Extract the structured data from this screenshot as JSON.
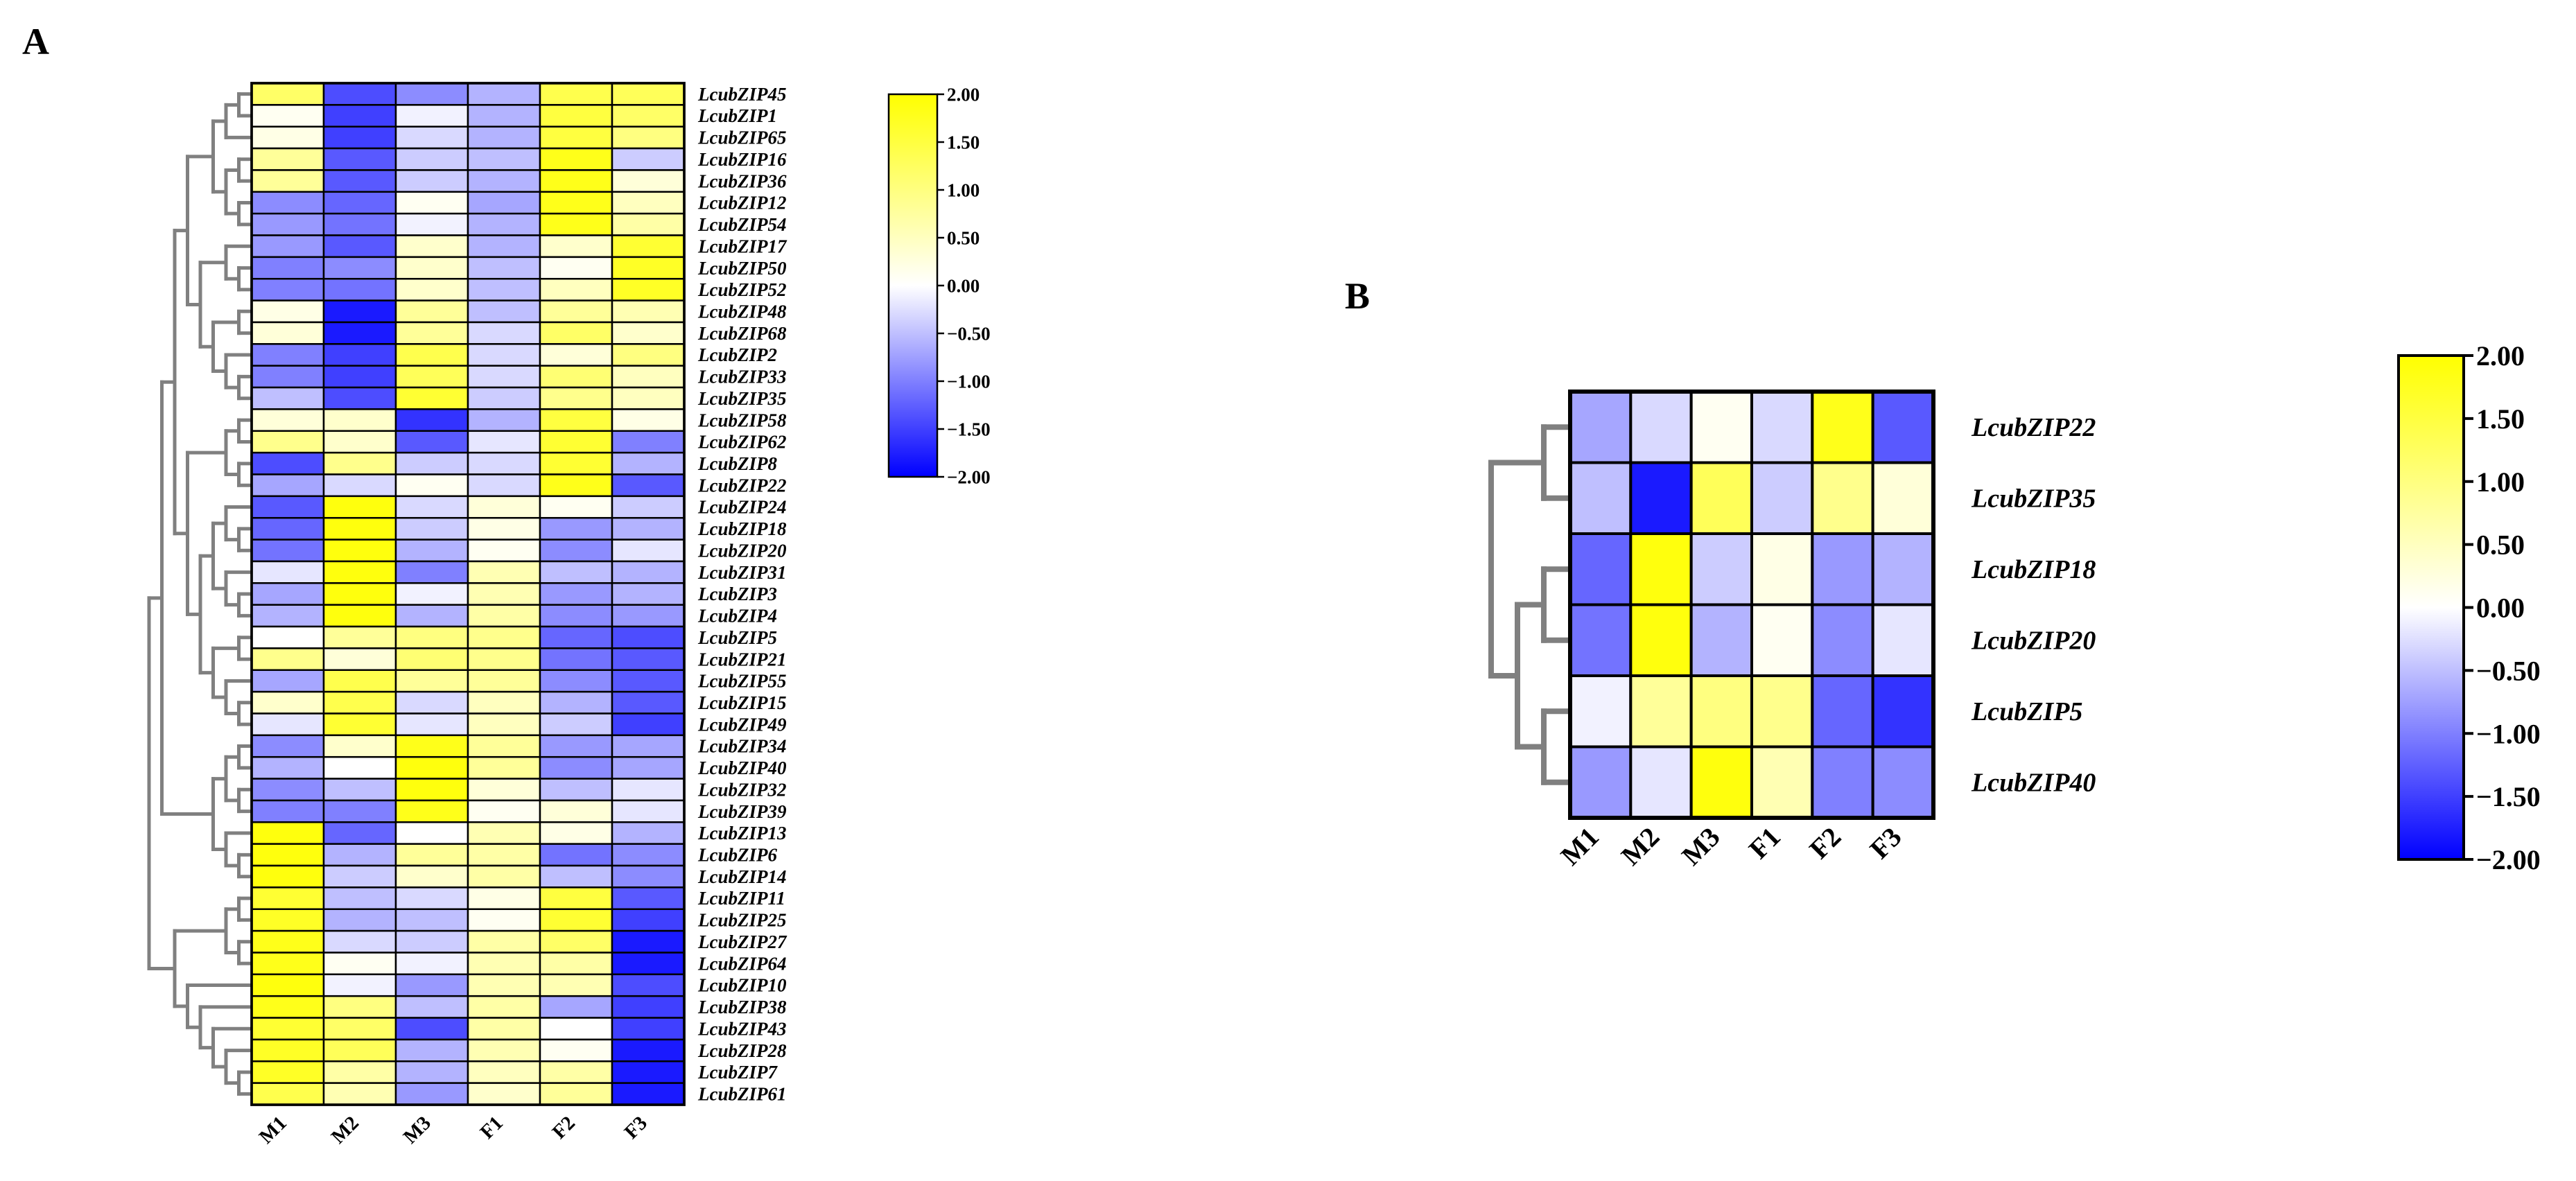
{
  "colors": {
    "low": "#0000ff",
    "mid": "#ffffff",
    "high": "#ffff00",
    "tree": "#808080"
  },
  "chart_data": [
    {
      "type": "heatmap",
      "panel": "A",
      "columns": [
        "M1",
        "M2",
        "M3",
        "F1",
        "F2",
        "F3"
      ],
      "rows": [
        "LcubZIP45",
        "LcubZIP1",
        "LcubZIP65",
        "LcubZIP16",
        "LcubZIP36",
        "LcubZIP12",
        "LcubZIP54",
        "LcubZIP17",
        "LcubZIP50",
        "LcubZIP52",
        "LcubZIP48",
        "LcubZIP68",
        "LcubZIP2",
        "LcubZIP33",
        "LcubZIP35",
        "LcubZIP58",
        "LcubZIP62",
        "LcubZIP8",
        "LcubZIP22",
        "LcubZIP24",
        "LcubZIP18",
        "LcubZIP20",
        "LcubZIP31",
        "LcubZIP3",
        "LcubZIP4",
        "LcubZIP5",
        "LcubZIP21",
        "LcubZIP55",
        "LcubZIP15",
        "LcubZIP49",
        "LcubZIP34",
        "LcubZIP40",
        "LcubZIP32",
        "LcubZIP39",
        "LcubZIP13",
        "LcubZIP6",
        "LcubZIP14",
        "LcubZIP11",
        "LcubZIP25",
        "LcubZIP27",
        "LcubZIP64",
        "LcubZIP10",
        "LcubZIP38",
        "LcubZIP43",
        "LcubZIP28",
        "LcubZIP7",
        "LcubZIP61"
      ],
      "values": [
        [
          1.2,
          -1.4,
          -0.9,
          -0.6,
          1.4,
          1.3
        ],
        [
          0.1,
          -1.5,
          -0.1,
          -0.6,
          1.5,
          1.2
        ],
        [
          0.2,
          -1.5,
          -0.3,
          -0.6,
          1.5,
          1.0
        ],
        [
          0.8,
          -1.3,
          -0.4,
          -0.5,
          1.8,
          -0.4
        ],
        [
          0.8,
          -1.3,
          -0.4,
          -0.6,
          1.8,
          0.3
        ],
        [
          -0.9,
          -1.2,
          0.1,
          -0.7,
          1.8,
          0.5
        ],
        [
          -0.8,
          -1.1,
          -0.1,
          -0.6,
          1.8,
          0.7
        ],
        [
          -0.8,
          -1.3,
          0.4,
          -0.6,
          0.4,
          1.6
        ],
        [
          -1.0,
          -0.9,
          0.4,
          -0.5,
          0.1,
          1.7
        ],
        [
          -1.0,
          -1.1,
          0.4,
          -0.5,
          0.5,
          1.7
        ],
        [
          0.2,
          -1.8,
          0.8,
          -0.5,
          0.8,
          0.6
        ],
        [
          0.3,
          -1.8,
          0.8,
          -0.3,
          1.2,
          0.4
        ],
        [
          -1.0,
          -1.5,
          1.4,
          -0.3,
          0.3,
          1.0
        ],
        [
          -1.0,
          -1.5,
          1.3,
          -0.3,
          1.1,
          0.5
        ],
        [
          -0.5,
          -1.4,
          1.6,
          -0.4,
          0.9,
          0.5
        ],
        [
          0.3,
          0.4,
          -1.6,
          -0.6,
          1.5,
          0.2
        ],
        [
          0.9,
          0.4,
          -1.3,
          -0.2,
          1.6,
          -1.0
        ],
        [
          -1.4,
          0.9,
          -0.4,
          -0.3,
          1.6,
          -0.6
        ],
        [
          -0.7,
          -0.3,
          0.1,
          -0.3,
          1.8,
          -1.3
        ],
        [
          -1.3,
          1.9,
          -0.3,
          0.3,
          0.1,
          -0.4
        ],
        [
          -1.2,
          1.9,
          -0.4,
          0.2,
          -0.8,
          -0.6
        ],
        [
          -1.1,
          1.9,
          -0.6,
          0.1,
          -0.9,
          -0.2
        ],
        [
          -0.2,
          1.9,
          -1.0,
          0.6,
          -0.5,
          -0.6
        ],
        [
          -0.7,
          1.9,
          -0.1,
          0.6,
          -0.8,
          -0.6
        ],
        [
          -0.6,
          1.9,
          -0.6,
          0.7,
          -0.9,
          -0.8
        ],
        [
          0.0,
          0.8,
          1.0,
          0.9,
          -1.2,
          -1.4
        ],
        [
          0.9,
          0.3,
          1.1,
          0.9,
          -1.1,
          -1.3
        ],
        [
          -0.7,
          1.4,
          0.8,
          0.8,
          -0.9,
          -1.3
        ],
        [
          0.4,
          1.4,
          -0.3,
          0.5,
          -0.6,
          -1.3
        ],
        [
          -0.2,
          1.6,
          -0.2,
          0.5,
          -0.4,
          -1.5
        ],
        [
          -0.9,
          0.4,
          1.8,
          0.8,
          -0.8,
          -0.7
        ],
        [
          -0.6,
          0.0,
          1.9,
          0.8,
          -0.9,
          -0.7
        ],
        [
          -0.9,
          -0.5,
          1.9,
          0.3,
          -0.5,
          -0.2
        ],
        [
          -1.0,
          -1.0,
          1.8,
          0.1,
          0.3,
          -0.2
        ],
        [
          1.9,
          -1.2,
          0.0,
          0.6,
          0.2,
          -0.6
        ],
        [
          1.9,
          -0.6,
          0.8,
          0.7,
          -1.1,
          -0.9
        ],
        [
          1.9,
          -0.4,
          0.4,
          0.7,
          -0.5,
          -0.9
        ],
        [
          1.6,
          -0.5,
          -0.3,
          0.2,
          1.5,
          -1.3
        ],
        [
          1.7,
          -0.6,
          -0.5,
          0.1,
          1.6,
          -1.5
        ],
        [
          1.8,
          -0.3,
          -0.4,
          0.7,
          1.2,
          -1.8
        ],
        [
          1.8,
          0.1,
          -0.1,
          0.6,
          0.7,
          -1.8
        ],
        [
          1.9,
          -0.1,
          -0.8,
          0.6,
          0.6,
          -1.4
        ],
        [
          1.8,
          1.0,
          -0.5,
          0.7,
          -0.7,
          -1.5
        ],
        [
          1.6,
          1.2,
          -1.4,
          0.7,
          0.0,
          -1.5
        ],
        [
          1.7,
          1.3,
          -0.6,
          0.6,
          0.1,
          -1.8
        ],
        [
          1.7,
          0.7,
          -0.6,
          0.5,
          0.7,
          -1.8
        ],
        [
          1.4,
          0.6,
          -0.8,
          0.4,
          0.8,
          -1.8
        ]
      ],
      "colorbar": {
        "min": -2.0,
        "max": 2.0,
        "ticks": [
          "2.00",
          "1.50",
          "1.00",
          "0.50",
          "0.00",
          "-0.50",
          "-1.00",
          "-1.50",
          "-2.00"
        ]
      }
    },
    {
      "type": "heatmap",
      "panel": "B",
      "columns": [
        "M1",
        "M2",
        "M3",
        "F1",
        "F2",
        "F3"
      ],
      "rows": [
        "LcubZIP22",
        "LcubZIP35",
        "LcubZIP18",
        "LcubZIP20",
        "LcubZIP5",
        "LcubZIP40"
      ],
      "values": [
        [
          -0.7,
          -0.3,
          0.1,
          -0.3,
          1.8,
          -1.3
        ],
        [
          -0.5,
          -1.8,
          1.3,
          -0.4,
          0.9,
          0.3
        ],
        [
          -1.2,
          1.9,
          -0.4,
          0.2,
          -0.8,
          -0.6
        ],
        [
          -1.1,
          1.9,
          -0.6,
          0.1,
          -0.9,
          -0.2
        ],
        [
          -0.1,
          0.8,
          1.0,
          0.9,
          -1.2,
          -1.6
        ],
        [
          -0.8,
          -0.2,
          1.9,
          0.6,
          -1.0,
          -0.9
        ]
      ],
      "colorbar": {
        "min": -2.0,
        "max": 2.0,
        "ticks": [
          "2.00",
          "1.50",
          "1.00",
          "0.50",
          "0.00",
          "-0.50",
          "-1.00",
          "-1.50",
          "-2.00"
        ]
      }
    }
  ]
}
